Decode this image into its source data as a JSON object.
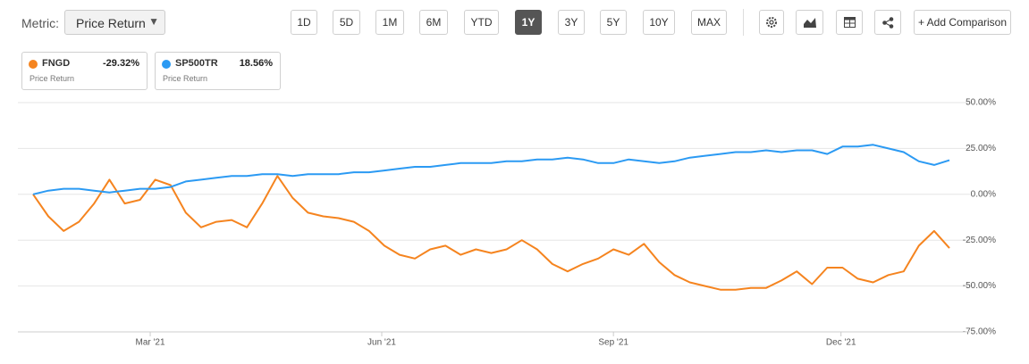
{
  "toolbar": {
    "metric_label": "Metric:",
    "metric_value": "Price Return",
    "ranges": [
      "1D",
      "5D",
      "1M",
      "6M",
      "YTD",
      "1Y",
      "3Y",
      "5Y",
      "10Y",
      "MAX"
    ],
    "active_range": "1Y",
    "add_comparison": "+ Add Comparison"
  },
  "chart_data": {
    "type": "line",
    "series": [
      {
        "name": "FNGD",
        "color": "#f5841f",
        "change": "-29.32%",
        "metric": "Price Return",
        "values": [
          0,
          -12,
          -20,
          -15,
          -5,
          8,
          -5,
          -3,
          8,
          5,
          -10,
          -18,
          -15,
          -14,
          -18,
          -5,
          10,
          -2,
          -10,
          -12,
          -13,
          -15,
          -20,
          -28,
          -33,
          -35,
          -30,
          -28,
          -33,
          -30,
          -32,
          -30,
          -25,
          -30,
          -38,
          -42,
          -38,
          -35,
          -30,
          -33,
          -27,
          -37,
          -44,
          -48,
          -50,
          -52,
          -52,
          -51,
          -51,
          -47,
          -42,
          -49,
          -40,
          -40,
          -46,
          -48,
          -44,
          -42,
          -28,
          -20,
          -29.32
        ]
      },
      {
        "name": "SP500TR",
        "color": "#2b9af3",
        "change": "18.56%",
        "metric": "Price Return",
        "values": [
          0,
          2,
          3,
          3,
          2,
          1,
          2,
          3,
          3,
          4,
          7,
          8,
          9,
          10,
          10,
          11,
          11,
          10,
          11,
          11,
          11,
          12,
          12,
          13,
          14,
          15,
          15,
          16,
          17,
          17,
          17,
          18,
          18,
          19,
          19,
          20,
          19,
          17,
          17,
          19,
          18,
          17,
          18,
          20,
          21,
          22,
          23,
          23,
          24,
          23,
          24,
          24,
          22,
          26,
          26,
          27,
          25,
          23,
          18,
          16,
          18.56
        ]
      }
    ],
    "ylim": [
      -75,
      50
    ],
    "yticks": [
      {
        "value": 50,
        "label": "50.00%"
      },
      {
        "value": 25,
        "label": "25.00%"
      },
      {
        "value": 0,
        "label": "0.00%"
      },
      {
        "value": -25,
        "label": "-25.00%"
      },
      {
        "value": -50,
        "label": "-50.00%"
      },
      {
        "value": -75,
        "label": "-75.00%"
      }
    ],
    "xticks": [
      {
        "value": 7.67,
        "label": "Mar '21"
      },
      {
        "value": 22.83,
        "label": "Jun '21"
      },
      {
        "value": 38,
        "label": "Sep '21"
      },
      {
        "value": 52.9,
        "label": "Dec '21"
      }
    ],
    "grid": true
  }
}
